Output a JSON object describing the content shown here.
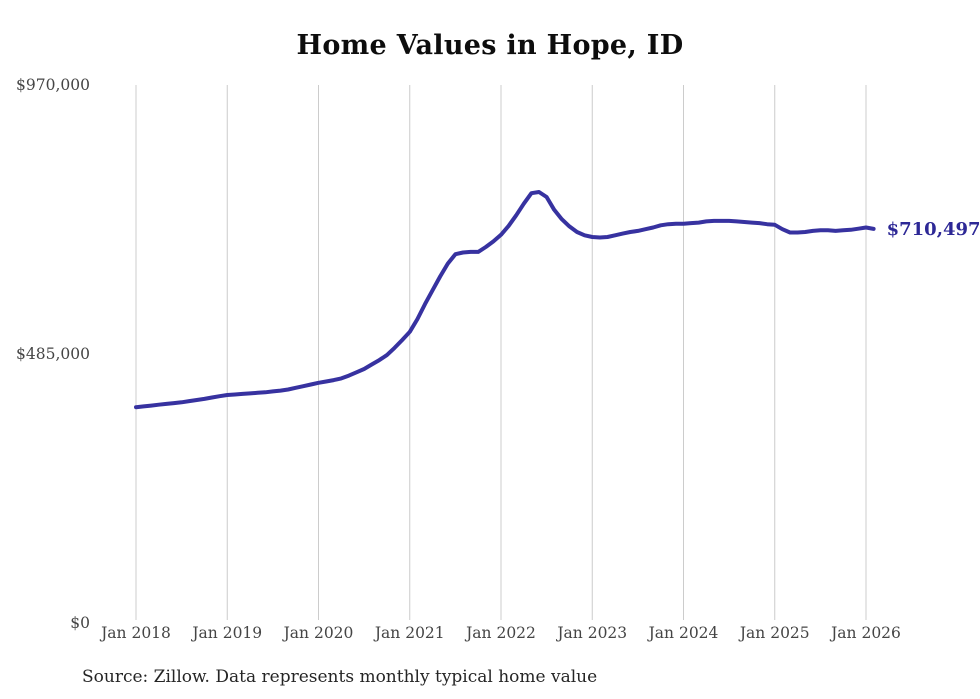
{
  "page": {
    "title": "Home Values in Hope, ID",
    "source_note": "Source: Zillow. Data represents monthly typical home value"
  },
  "chart_data": {
    "type": "line",
    "title": "Home Values in Hope, ID",
    "xlabel": "",
    "ylabel": "",
    "x_tick_labels": [
      "Jan 2018",
      "Jan 2019",
      "Jan 2020",
      "Jan 2021",
      "Jan 2022",
      "Jan 2023",
      "Jan 2024",
      "Jan 2025",
      "Jan 2026"
    ],
    "y_ticks": [
      {
        "value": 0,
        "label": "$0"
      },
      {
        "value": 485000,
        "label": "$485,000"
      },
      {
        "value": 970000,
        "label": "$970,000"
      }
    ],
    "y_axis_range": [
      0,
      970000
    ],
    "grid": "vertical-only",
    "legend": "none",
    "colors": {
      "line": "#3732a0",
      "end_label": "#2d2896",
      "gridline": "#cccccc",
      "tick_text": "#454545"
    },
    "series": [
      {
        "name": "Typical home value",
        "start_month": "2018-01",
        "frequency": "monthly",
        "values": [
          389000,
          390500,
          392000,
          393500,
          395000,
          396500,
          398000,
          400000,
          402000,
          404000,
          406500,
          409000,
          411000,
          412000,
          413000,
          414000,
          415000,
          416000,
          417500,
          419000,
          421000,
          424000,
          427000,
          430000,
          433000,
          435500,
          438000,
          441000,
          446000,
          452000,
          458000,
          466000,
          474000,
          483000,
          496000,
          510000,
          525000,
          548000,
          575000,
          600000,
          625000,
          648000,
          665000,
          668000,
          669000,
          669000,
          678000,
          688000,
          700000,
          716000,
          735000,
          756000,
          775000,
          777000,
          768000,
          745000,
          728000,
          715000,
          705000,
          699000,
          696000,
          695000,
          696000,
          699000,
          702000,
          705000,
          707000,
          710000,
          713000,
          717000,
          719000,
          720000,
          720000,
          721000,
          722000,
          724000,
          725000,
          725000,
          725000,
          724000,
          723000,
          722000,
          721000,
          719000,
          718000,
          710000,
          704000,
          704000,
          705000,
          707000,
          708000,
          708000,
          707000,
          708000,
          709000,
          711000,
          713000,
          710497
        ]
      }
    ],
    "end_label": {
      "text": "$710,497",
      "value": 710497
    }
  }
}
